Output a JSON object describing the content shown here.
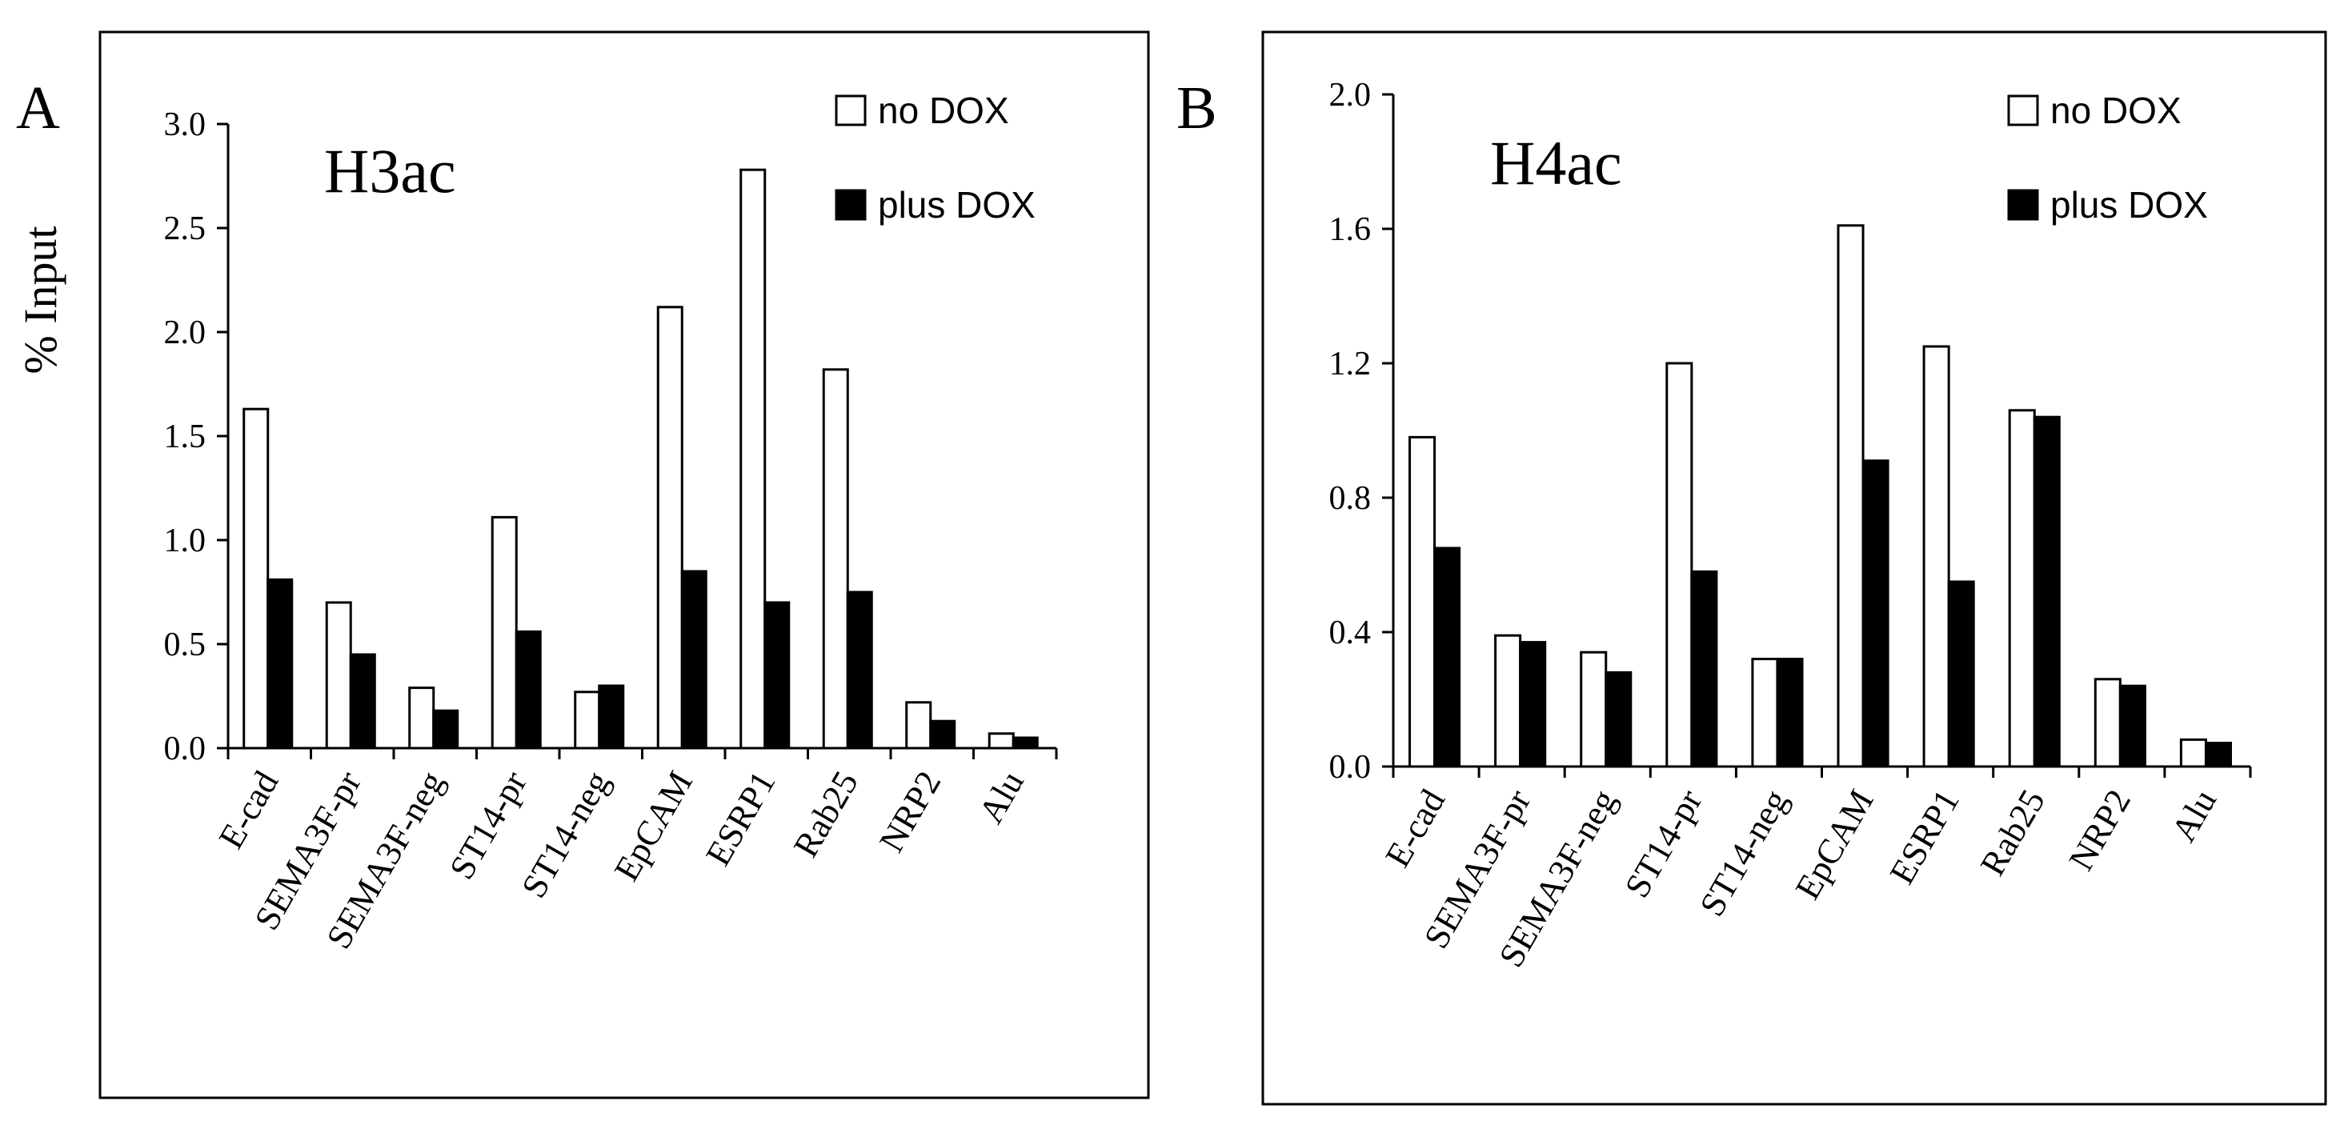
{
  "figure": {
    "colors": {
      "no_dox": "#ffffff",
      "plus_dox": "#000000",
      "axis": "#000000"
    }
  },
  "chart_data": [
    {
      "panel_label": "A",
      "type": "bar",
      "title": "H3ac",
      "ylabel": "% Input",
      "xlabel": "",
      "ylim": [
        0,
        3.0
      ],
      "yticks": [
        "0.0",
        "0.5",
        "1.0",
        "1.5",
        "2.0",
        "2.5",
        "3.0"
      ],
      "ytick_values": [
        0,
        0.5,
        1.0,
        1.5,
        2.0,
        2.5,
        3.0
      ],
      "categories": [
        "E-cad",
        "SEMA3F-pr",
        "SEMA3F-neg",
        "ST14-pr",
        "ST14-neg",
        "EpCAM",
        "ESRP1",
        "Rab25",
        "NRP2",
        "Alu"
      ],
      "series": [
        {
          "name": "no DOX",
          "values": [
            1.63,
            0.7,
            0.29,
            1.11,
            0.27,
            2.12,
            2.78,
            1.82,
            0.22,
            0.07
          ]
        },
        {
          "name": "plus DOX",
          "values": [
            0.81,
            0.45,
            0.18,
            0.56,
            0.3,
            0.85,
            0.7,
            0.75,
            0.13,
            0.05
          ]
        }
      ],
      "legend": [
        "no DOX",
        "plus DOX"
      ],
      "legend_position": "top-right",
      "grid": false
    },
    {
      "panel_label": "B",
      "type": "bar",
      "title": "H4ac",
      "ylabel": "",
      "xlabel": "",
      "ylim": [
        0,
        2.0
      ],
      "yticks": [
        "0.0",
        "0.4",
        "0.8",
        "1.2",
        "1.6",
        "2.0"
      ],
      "ytick_values": [
        0,
        0.4,
        0.8,
        1.2,
        1.6,
        2.0
      ],
      "categories": [
        "E-cad",
        "SEMA3F-pr",
        "SEMA3F-neg",
        "ST14-pr",
        "ST14-neg",
        "EpCAM",
        "ESRP1",
        "Rab25",
        "NRP2",
        "Alu"
      ],
      "series": [
        {
          "name": "no DOX",
          "values": [
            0.98,
            0.39,
            0.34,
            1.2,
            0.32,
            1.61,
            1.25,
            1.06,
            0.26,
            0.08
          ]
        },
        {
          "name": "plus DOX",
          "values": [
            0.65,
            0.37,
            0.28,
            0.58,
            0.32,
            0.91,
            0.55,
            1.04,
            0.24,
            0.07
          ]
        }
      ],
      "legend": [
        "no DOX",
        "plus DOX"
      ],
      "legend_position": "top-right",
      "grid": false
    }
  ]
}
